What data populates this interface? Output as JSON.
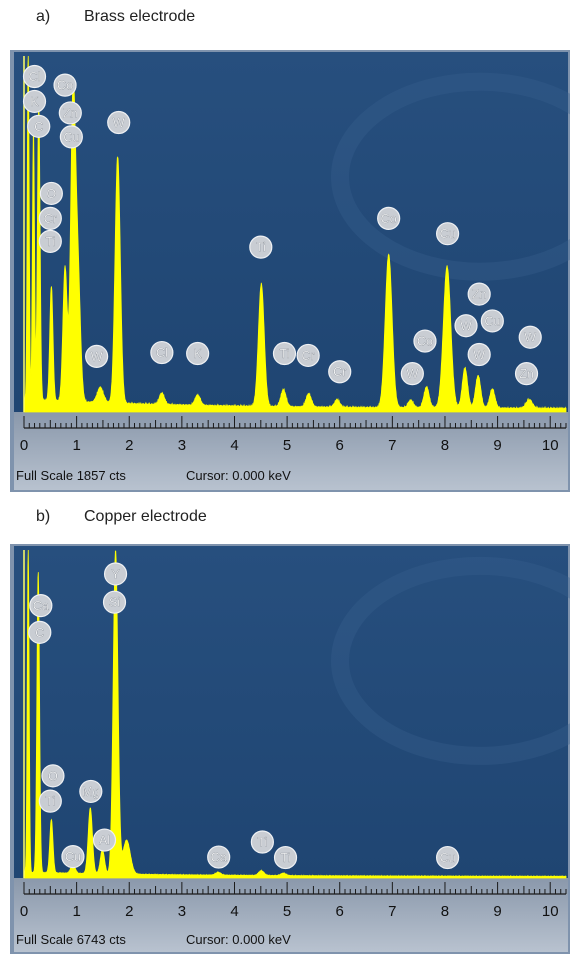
{
  "chart_data": [
    {
      "type": "line",
      "panel_letter": "a)",
      "panel_title": "Brass electrode",
      "x_ticks": [
        "0",
        "1",
        "2",
        "3",
        "4",
        "5",
        "6",
        "7",
        "8",
        "9",
        "10"
      ],
      "xlim": [
        0,
        10.3
      ],
      "ylim": [
        0,
        1857
      ],
      "footer_full_scale": "Full Scale 1857 cts",
      "footer_cursor": "Cursor: 0.000 keV",
      "spectrum": {
        "color": "#ffff00",
        "baseline": 50,
        "peaks": [
          {
            "x": 0.08,
            "h": 1850,
            "w": 0.018
          },
          {
            "x": 0.18,
            "h": 1400,
            "w": 0.02
          },
          {
            "x": 0.28,
            "h": 1550,
            "w": 0.025
          },
          {
            "x": 0.52,
            "h": 600,
            "w": 0.03
          },
          {
            "x": 0.78,
            "h": 700,
            "w": 0.04
          },
          {
            "x": 0.93,
            "h": 1530,
            "w": 0.045
          },
          {
            "x": 1.02,
            "h": 700,
            "w": 0.05
          },
          {
            "x": 1.45,
            "h": 80,
            "w": 0.06
          },
          {
            "x": 1.78,
            "h": 1290,
            "w": 0.05
          },
          {
            "x": 2.62,
            "h": 60,
            "w": 0.05
          },
          {
            "x": 3.3,
            "h": 55,
            "w": 0.05
          },
          {
            "x": 4.51,
            "h": 640,
            "w": 0.055
          },
          {
            "x": 4.93,
            "h": 90,
            "w": 0.05
          },
          {
            "x": 5.41,
            "h": 70,
            "w": 0.05
          },
          {
            "x": 5.95,
            "h": 40,
            "w": 0.05
          },
          {
            "x": 6.93,
            "h": 800,
            "w": 0.065
          },
          {
            "x": 7.35,
            "h": 40,
            "w": 0.05
          },
          {
            "x": 7.65,
            "h": 110,
            "w": 0.05
          },
          {
            "x": 8.04,
            "h": 740,
            "w": 0.07
          },
          {
            "x": 8.38,
            "h": 210,
            "w": 0.05
          },
          {
            "x": 8.63,
            "h": 170,
            "w": 0.05
          },
          {
            "x": 8.9,
            "h": 100,
            "w": 0.05
          },
          {
            "x": 9.6,
            "h": 45,
            "w": 0.06
          }
        ]
      },
      "labels": [
        {
          "text": "Cl",
          "x": 0.2,
          "y": 1750
        },
        {
          "text": "K",
          "x": 0.2,
          "y": 1620
        },
        {
          "text": "C",
          "x": 0.28,
          "y": 1490
        },
        {
          "text": "Co",
          "x": 0.78,
          "y": 1705
        },
        {
          "text": "Zn",
          "x": 0.88,
          "y": 1560
        },
        {
          "text": "Cu",
          "x": 0.9,
          "y": 1435
        },
        {
          "text": "W",
          "x": 1.8,
          "y": 1510
        },
        {
          "text": "O",
          "x": 0.52,
          "y": 1140
        },
        {
          "text": "Cr",
          "x": 0.5,
          "y": 1010
        },
        {
          "text": "Ti",
          "x": 0.5,
          "y": 890
        },
        {
          "text": "W",
          "x": 1.38,
          "y": 290
        },
        {
          "text": "Cl",
          "x": 2.62,
          "y": 310
        },
        {
          "text": "K",
          "x": 3.3,
          "y": 305
        },
        {
          "text": "Ti",
          "x": 4.5,
          "y": 860
        },
        {
          "text": "Ti",
          "x": 4.95,
          "y": 305
        },
        {
          "text": "Cr",
          "x": 5.4,
          "y": 295
        },
        {
          "text": "Cr",
          "x": 6.0,
          "y": 210
        },
        {
          "text": "Co",
          "x": 6.93,
          "y": 1010
        },
        {
          "text": "Cu",
          "x": 8.05,
          "y": 930
        },
        {
          "text": "Co",
          "x": 7.62,
          "y": 370
        },
        {
          "text": "W",
          "x": 7.38,
          "y": 200
        },
        {
          "text": "Zn",
          "x": 8.65,
          "y": 615
        },
        {
          "text": "W",
          "x": 8.4,
          "y": 450
        },
        {
          "text": "Cu",
          "x": 8.9,
          "y": 475
        },
        {
          "text": "W",
          "x": 8.65,
          "y": 300
        },
        {
          "text": "W",
          "x": 9.62,
          "y": 390
        },
        {
          "text": "Zn",
          "x": 9.55,
          "y": 200
        }
      ]
    },
    {
      "type": "line",
      "panel_letter": "b)",
      "panel_title": "Copper electrode",
      "x_ticks": [
        "0",
        "1",
        "2",
        "3",
        "4",
        "5",
        "6",
        "7",
        "8",
        "9",
        "10"
      ],
      "xlim": [
        0,
        10.3
      ],
      "ylim": [
        0,
        6743
      ],
      "footer_full_scale": "Full Scale 6743 cts",
      "footer_cursor": "Cursor: 0.000 keV",
      "spectrum": {
        "color": "#ffff00",
        "baseline": 90,
        "peaks": [
          {
            "x": 0.08,
            "h": 6700,
            "w": 0.018
          },
          {
            "x": 0.27,
            "h": 6200,
            "w": 0.025
          },
          {
            "x": 0.52,
            "h": 1100,
            "w": 0.03
          },
          {
            "x": 0.93,
            "h": 200,
            "w": 0.04
          },
          {
            "x": 1.26,
            "h": 1350,
            "w": 0.04
          },
          {
            "x": 1.49,
            "h": 500,
            "w": 0.04
          },
          {
            "x": 1.74,
            "h": 6650,
            "w": 0.045
          },
          {
            "x": 1.95,
            "h": 700,
            "w": 0.07
          },
          {
            "x": 3.69,
            "h": 60,
            "w": 0.05
          },
          {
            "x": 4.51,
            "h": 100,
            "w": 0.05
          },
          {
            "x": 4.93,
            "h": 50,
            "w": 0.05
          }
        ]
      },
      "labels": [
        {
          "text": "Ca",
          "x": 0.32,
          "y": 5600
        },
        {
          "text": "C",
          "x": 0.3,
          "y": 5050
        },
        {
          "text": "Y",
          "x": 1.74,
          "y": 6250
        },
        {
          "text": "Si",
          "x": 1.72,
          "y": 5670
        },
        {
          "text": "O",
          "x": 0.55,
          "y": 2100
        },
        {
          "text": "Ti",
          "x": 0.5,
          "y": 1580
        },
        {
          "text": "Mg",
          "x": 1.27,
          "y": 1780
        },
        {
          "text": "Al",
          "x": 1.53,
          "y": 780
        },
        {
          "text": "Cu",
          "x": 0.93,
          "y": 440
        },
        {
          "text": "Ca",
          "x": 3.7,
          "y": 430
        },
        {
          "text": "Ti",
          "x": 4.53,
          "y": 740
        },
        {
          "text": "Ti",
          "x": 4.97,
          "y": 420
        },
        {
          "text": "Cu",
          "x": 8.05,
          "y": 420
        }
      ]
    }
  ]
}
